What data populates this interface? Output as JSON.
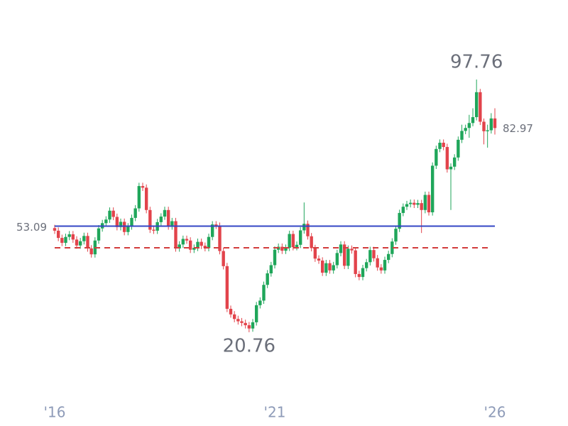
{
  "chart_data": {
    "type": "candlestick",
    "xlim": [
      0,
      120
    ],
    "xticks": [
      {
        "value": 0,
        "label": "'16"
      },
      {
        "value": 60,
        "label": "'21"
      },
      {
        "value": 120,
        "label": "'26"
      }
    ],
    "ylim": [
      10,
      110
    ],
    "up_color": "#1fa65a",
    "down_color": "#e2434b",
    "reference_line": {
      "value": 53.09,
      "color": "#3346c4"
    },
    "dashed_line": {
      "value": 46.5,
      "color": "#d23c3c"
    },
    "open": [
      52.5,
      51.7,
      49.5,
      48.0,
      49.8,
      50.6,
      49.0,
      47.2,
      48.5,
      50.1,
      46.3,
      44.5,
      48.7,
      52.4,
      54.0,
      55.1,
      57.8,
      55.9,
      52.8,
      54.4,
      51.3,
      53.0,
      55.6,
      58.5,
      65.3,
      64.8,
      58.0,
      52.0,
      51.7,
      54.3,
      56.0,
      58.0,
      53.0,
      54.6,
      46.3,
      47.5,
      49.2,
      48.7,
      45.9,
      46.5,
      48.3,
      47.1,
      46.4,
      49.8,
      53.6,
      53.2,
      45.5,
      40.9,
      27.9,
      26.2,
      24.8,
      24.1,
      23.6,
      22.9,
      21.9,
      23.8,
      29.0,
      30.4,
      35.2,
      38.7,
      41.2,
      45.9,
      46.8,
      45.6,
      46.5,
      50.7,
      46.7,
      47.4,
      51.8,
      53.8,
      50.0,
      46.4,
      43.2,
      42.6,
      38.9,
      41.8,
      39.6,
      41.2,
      44.9,
      47.5,
      41.0,
      46.2,
      45.7,
      38.5,
      37.6,
      40.3,
      42.1,
      45.8,
      43.3,
      40.5,
      39.6,
      42.8,
      44.6,
      48.4,
      52.3,
      57.1,
      59.0,
      59.8,
      60.2,
      59.6,
      60.1,
      58.0,
      62.6,
      57.3,
      71.5,
      76.6,
      78.5,
      77.2,
      70.4,
      71.2,
      74.0,
      79.4,
      82.1,
      83.0,
      84.5,
      86.3,
      93.9,
      84.9,
      82.0,
      82.3,
      85.9
    ],
    "high": [
      53.5,
      52.7,
      50.5,
      50.8,
      51.6,
      51.6,
      50.0,
      49.5,
      51.1,
      51.1,
      47.3,
      49.7,
      53.4,
      55.0,
      56.1,
      58.8,
      58.8,
      56.9,
      55.4,
      55.4,
      54.0,
      56.6,
      59.5,
      66.3,
      66.3,
      65.8,
      59.0,
      53.0,
      55.3,
      57.0,
      59.0,
      59.0,
      55.6,
      55.6,
      48.5,
      50.2,
      50.2,
      49.7,
      47.5,
      49.3,
      49.3,
      48.1,
      50.8,
      54.6,
      54.6,
      54.2,
      46.5,
      41.9,
      28.9,
      27.2,
      25.8,
      25.1,
      24.6,
      23.9,
      24.8,
      30.0,
      31.4,
      36.2,
      39.7,
      42.2,
      46.9,
      47.8,
      47.8,
      47.5,
      51.7,
      51.7,
      48.4,
      52.8,
      60.3,
      54.8,
      51.0,
      47.4,
      44.2,
      43.6,
      42.8,
      42.8,
      42.2,
      45.9,
      48.5,
      48.5,
      47.2,
      47.2,
      46.7,
      39.5,
      41.3,
      43.1,
      46.8,
      46.8,
      44.3,
      41.5,
      43.8,
      45.6,
      49.4,
      53.3,
      58.1,
      60.0,
      60.8,
      61.2,
      61.2,
      61.1,
      61.1,
      63.6,
      63.6,
      72.5,
      77.6,
      79.5,
      79.5,
      78.2,
      72.2,
      75.0,
      80.4,
      84.0,
      84.0,
      87.0,
      89.0,
      97.76,
      94.9,
      85.9,
      84.0,
      87.5,
      89.0
    ],
    "low": [
      50.7,
      48.5,
      47.0,
      47.0,
      48.8,
      48.0,
      46.2,
      46.2,
      47.5,
      45.3,
      43.5,
      43.5,
      47.7,
      51.4,
      53.0,
      54.1,
      54.9,
      51.8,
      51.8,
      50.3,
      50.3,
      52.0,
      54.6,
      57.5,
      63.8,
      57.0,
      51.0,
      50.7,
      50.7,
      53.3,
      55.0,
      52.0,
      52.0,
      45.3,
      45.3,
      46.5,
      47.7,
      44.9,
      44.9,
      45.5,
      46.1,
      45.4,
      45.4,
      48.8,
      52.2,
      44.5,
      39.9,
      26.9,
      25.2,
      23.8,
      23.1,
      22.6,
      21.9,
      20.76,
      20.9,
      22.8,
      28.0,
      29.4,
      34.2,
      37.7,
      40.2,
      44.9,
      44.6,
      44.6,
      45.5,
      45.7,
      45.7,
      46.4,
      50.8,
      49.0,
      45.4,
      42.2,
      41.6,
      37.9,
      37.9,
      38.6,
      38.6,
      40.2,
      43.9,
      40.0,
      40.0,
      44.7,
      37.5,
      36.6,
      36.6,
      39.3,
      41.1,
      42.3,
      39.5,
      38.6,
      38.6,
      41.8,
      43.6,
      47.4,
      51.3,
      56.1,
      58.0,
      58.8,
      58.6,
      58.6,
      51.0,
      57.0,
      56.3,
      56.3,
      70.5,
      75.6,
      76.2,
      69.4,
      58.0,
      70.2,
      73.0,
      78.4,
      81.1,
      80.0,
      83.5,
      85.3,
      83.9,
      78.0,
      77.0,
      81.3,
      81.0
    ],
    "close": [
      51.7,
      49.5,
      48.0,
      49.8,
      50.6,
      49.0,
      47.2,
      48.5,
      50.1,
      46.3,
      44.5,
      48.7,
      52.4,
      54.0,
      55.1,
      57.8,
      55.9,
      52.8,
      54.4,
      51.3,
      53.0,
      55.6,
      58.5,
      65.3,
      64.8,
      58.0,
      52.0,
      51.7,
      54.3,
      56.0,
      58.0,
      53.0,
      54.6,
      46.3,
      47.5,
      49.2,
      48.7,
      45.9,
      46.5,
      48.3,
      47.1,
      46.4,
      49.8,
      53.6,
      53.2,
      45.5,
      40.9,
      27.9,
      26.2,
      24.8,
      24.1,
      23.6,
      22.9,
      21.9,
      23.8,
      29.0,
      30.4,
      35.2,
      38.7,
      41.2,
      45.9,
      46.8,
      45.6,
      46.5,
      50.7,
      46.7,
      47.4,
      51.8,
      53.8,
      50.0,
      46.4,
      43.2,
      42.6,
      38.9,
      41.8,
      39.6,
      41.2,
      44.9,
      47.5,
      41.0,
      46.2,
      45.7,
      38.5,
      37.6,
      40.3,
      42.1,
      45.8,
      43.3,
      40.5,
      39.6,
      42.8,
      44.6,
      48.4,
      52.3,
      57.1,
      59.0,
      59.8,
      60.2,
      59.6,
      60.1,
      58.0,
      62.6,
      57.3,
      71.5,
      76.6,
      78.5,
      77.2,
      70.4,
      71.2,
      74.0,
      79.4,
      82.1,
      83.0,
      84.5,
      86.3,
      93.9,
      84.9,
      82.0,
      82.3,
      85.9,
      82.97
    ]
  }
}
